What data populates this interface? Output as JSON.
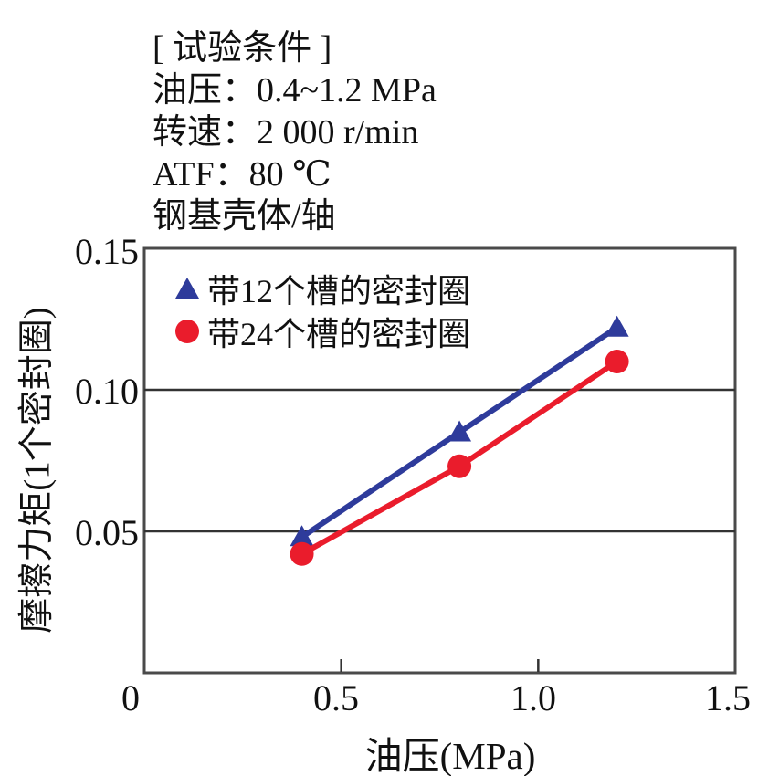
{
  "conditions": {
    "title": "[ 试验条件 ]",
    "lines": [
      "油压：0.4~1.2 MPa",
      "转速：2 000 r/min",
      "ATF：80 ℃",
      "钢基壳体/轴"
    ]
  },
  "chart_data": {
    "type": "line",
    "title": "",
    "xlabel": "油压(MPa)",
    "ylabel": "摩擦力矩(1个密封圈)",
    "xlim": [
      0,
      1.5
    ],
    "ylim": [
      0,
      0.15
    ],
    "x_ticks": [
      0,
      0.5,
      1.0,
      1.5
    ],
    "x_tick_labels": [
      "0",
      "0.5",
      "1.0",
      "1.5"
    ],
    "y_ticks": [
      0.05,
      0.1,
      0.15
    ],
    "y_tick_labels": [
      "0.05",
      "0.10",
      "0.15"
    ],
    "gridlines_y": [
      0.05,
      0.1
    ],
    "grid": "horizontal-only",
    "legend_position": "top-left-inside",
    "axis_color": "#4a4a4a",
    "gridline_color": "#333333",
    "text_color": "#111111",
    "series": [
      {
        "name": "带12个槽的密封圈",
        "marker": "triangle",
        "color": "#2e3b9b",
        "x": [
          0.4,
          0.8,
          1.2
        ],
        "y": [
          0.048,
          0.085,
          0.122
        ]
      },
      {
        "name": "带24个槽的密封圈",
        "marker": "circle",
        "color": "#ea1c2c",
        "x": [
          0.4,
          0.8,
          1.2
        ],
        "y": [
          0.042,
          0.073,
          0.11
        ]
      }
    ]
  }
}
